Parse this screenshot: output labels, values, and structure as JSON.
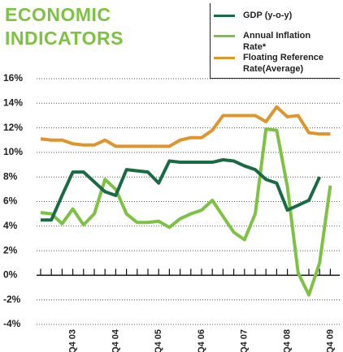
{
  "chart_data": {
    "type": "line",
    "title": "ECONOMIC INDICATORS",
    "title_color": "#7dc242",
    "categories": [
      null,
      null,
      null,
      "Q4 03",
      null,
      null,
      null,
      "Q4 04",
      null,
      null,
      null,
      "Q4 05",
      null,
      null,
      null,
      "Q4 06",
      null,
      null,
      null,
      "Q4 07",
      null,
      null,
      null,
      "Q4 08",
      null,
      null,
      null,
      "Q4 09"
    ],
    "series": [
      {
        "name": "GDP (y-o-y)",
        "color": "#1a6b45",
        "values": [
          4.5,
          4.5,
          6.5,
          8.4,
          8.4,
          7.6,
          6.8,
          6.5,
          8.6,
          8.5,
          8.4,
          7.5,
          9.3,
          9.2,
          9.2,
          9.2,
          9.2,
          9.4,
          9.3,
          8.9,
          8.6,
          7.8,
          7.5,
          5.3,
          5.7,
          6.1,
          8.0,
          null
        ]
      },
      {
        "name": "Annual Inflation Rate*",
        "color": "#7dc242",
        "values": [
          5.1,
          5.0,
          4.2,
          5.4,
          4.1,
          5.0,
          7.8,
          7.0,
          5.0,
          4.3,
          4.3,
          4.4,
          3.9,
          4.6,
          5.0,
          5.3,
          6.1,
          4.8,
          3.5,
          2.9,
          5.0,
          11.9,
          11.8,
          7.2,
          0.2,
          -1.6,
          1.0,
          7.3
        ]
      },
      {
        "name": "Floating Reference Rate(Average)",
        "color": "#e0952b",
        "values": [
          11.1,
          11.0,
          11.0,
          10.7,
          10.6,
          10.6,
          11.0,
          10.5,
          10.5,
          10.5,
          10.5,
          10.5,
          10.5,
          11.0,
          11.2,
          11.2,
          11.8,
          13.0,
          13.0,
          13.0,
          13.0,
          12.5,
          13.7,
          12.9,
          13.0,
          11.6,
          11.5,
          11.5
        ]
      }
    ],
    "ylim": [
      -4,
      16
    ],
    "yticks": [
      {
        "value": -4,
        "label": "-4%"
      },
      {
        "value": -2,
        "label": "-2%"
      },
      {
        "value": 0,
        "label": "0%"
      },
      {
        "value": 2,
        "label": "2%"
      },
      {
        "value": 4,
        "label": "4%"
      },
      {
        "value": 6,
        "label": "6%"
      },
      {
        "value": 8,
        "label": "8%"
      },
      {
        "value": 10,
        "label": "10%"
      },
      {
        "value": 12,
        "label": "12%"
      },
      {
        "value": 14,
        "label": "14%"
      },
      {
        "value": 16,
        "label": "16%"
      }
    ],
    "grid": true
  }
}
